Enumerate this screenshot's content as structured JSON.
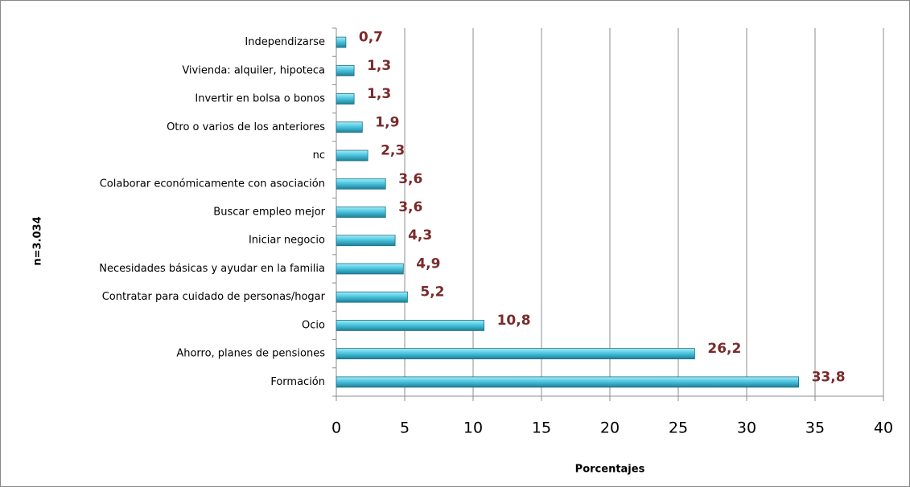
{
  "chart_data": {
    "type": "bar",
    "orientation": "horizontal",
    "y_label": "n=3.034",
    "x_label": "Porcentajes",
    "categories": [
      "Independizarse",
      "Vivienda: alquiler, hipoteca",
      "Invertir en bolsa o bonos",
      "Otro o varios de los anteriores",
      "nc",
      "Colaborar económicamente con asociación",
      "Buscar empleo mejor",
      "Iniciar negocio",
      "Necesidades básicas y ayudar en la familia",
      "Contratar para cuidado de personas/hogar",
      "Ocio",
      "Ahorro, planes de pensiones",
      "Formación"
    ],
    "values": [
      0.7,
      1.3,
      1.3,
      1.9,
      2.3,
      3.6,
      3.6,
      4.3,
      4.9,
      5.2,
      10.8,
      26.2,
      33.8
    ],
    "value_labels": [
      "0,7",
      "1,3",
      "1,3",
      "1,9",
      "2,3",
      "3,6",
      "3,6",
      "4,3",
      "4,9",
      "5,2",
      "10,8",
      "26,2",
      "33,8"
    ],
    "color": "#4bc6e0",
    "xlim": [
      0,
      40
    ],
    "xticks": [
      0,
      5,
      10,
      15,
      20,
      25,
      30,
      35,
      40
    ],
    "grid": true
  }
}
